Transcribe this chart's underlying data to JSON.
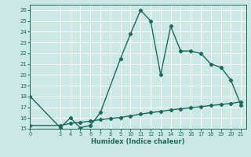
{
  "title": "",
  "xlabel": "Humidex (Indice chaleur)",
  "background_color": "#cce8e4",
  "line_color": "#1a6b5a",
  "grid_color": "#ffffff",
  "xlim": [
    0,
    21.5
  ],
  "ylim": [
    15,
    26.5
  ],
  "xticks": [
    0,
    3,
    4,
    5,
    6,
    7,
    8,
    9,
    10,
    11,
    12,
    13,
    14,
    15,
    16,
    17,
    18,
    19,
    20,
    21
  ],
  "yticks": [
    15,
    16,
    17,
    18,
    19,
    20,
    21,
    22,
    23,
    24,
    25,
    26
  ],
  "curve1_x": [
    0,
    3,
    4,
    5,
    6,
    7,
    9,
    10,
    11,
    12,
    13,
    14,
    15,
    16,
    17,
    18,
    19,
    20,
    21
  ],
  "curve1_y": [
    18.0,
    15.1,
    16.0,
    15.1,
    15.3,
    16.5,
    21.5,
    23.8,
    26.0,
    25.0,
    20.0,
    24.5,
    22.2,
    22.2,
    22.0,
    21.0,
    20.7,
    19.5,
    17.2
  ],
  "curve2_x": [
    0,
    3,
    4,
    5,
    6,
    7,
    8,
    9,
    10,
    11,
    12,
    13,
    14,
    15,
    16,
    17,
    18,
    19,
    20,
    21
  ],
  "curve2_y": [
    15.3,
    15.3,
    15.5,
    15.6,
    15.7,
    15.85,
    15.95,
    16.05,
    16.2,
    16.35,
    16.5,
    16.6,
    16.75,
    16.85,
    16.95,
    17.05,
    17.15,
    17.25,
    17.35,
    17.5
  ],
  "marker": "D",
  "markersize": 2.2,
  "linewidth": 1.0
}
